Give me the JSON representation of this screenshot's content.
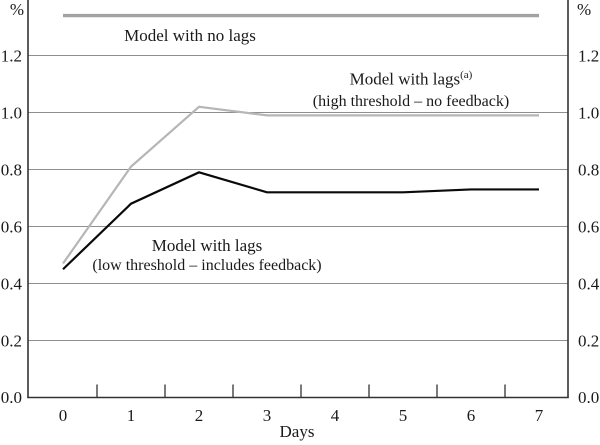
{
  "axes_labels": {
    "percent_left": "%",
    "percent_right": "%",
    "xlabel": "Days"
  },
  "annotations": {
    "no_lags": {
      "text": "Model with no lags"
    },
    "lags_high": {
      "line1": "Model with lags",
      "sup": "(a)",
      "line2": "(high threshold – no feedback)"
    },
    "lags_low": {
      "line1": "Model with lags",
      "line2": "(low threshold – includes feedback)"
    }
  },
  "chart_data": {
    "type": "line",
    "x": [
      0,
      1,
      2,
      3,
      4,
      5,
      6,
      7
    ],
    "xtick_labels": [
      "0",
      "1",
      "2",
      "3",
      "4",
      "5",
      "6",
      "7"
    ],
    "xlabel": "Days",
    "ylabel": "%",
    "ylim": [
      0.0,
      1.4
    ],
    "yticks": [
      0.2,
      0.4,
      0.6,
      0.8,
      1.0,
      1.2
    ],
    "ytick_labels": [
      "0.2",
      "0.4",
      "0.6",
      "0.8",
      "1.0",
      "1.2"
    ],
    "ytick_zero_label": "0.0",
    "grid": true,
    "legend_position": "inline-annotations",
    "series": [
      {
        "name": "Model with no lags",
        "color": "#a2a2a2",
        "width": 3.4,
        "values": [
          1.34,
          1.34,
          1.34,
          1.34,
          1.34,
          1.34,
          1.34,
          1.34
        ]
      },
      {
        "name": "Model with lags (high threshold – no feedback)",
        "color": "#b6b6b6",
        "width": 2.2,
        "values": [
          0.47,
          0.81,
          1.02,
          0.99,
          0.99,
          0.99,
          0.99,
          0.99
        ]
      },
      {
        "name": "Model with lags (low threshold – includes feedback)",
        "color": "#0a0a0a",
        "width": 2.2,
        "values": [
          0.45,
          0.68,
          0.79,
          0.72,
          0.72,
          0.72,
          0.73,
          0.73
        ]
      }
    ]
  },
  "style": {
    "grid_color": "#8f8f8f",
    "axis_color": "#333333",
    "background": "#ffffff"
  }
}
